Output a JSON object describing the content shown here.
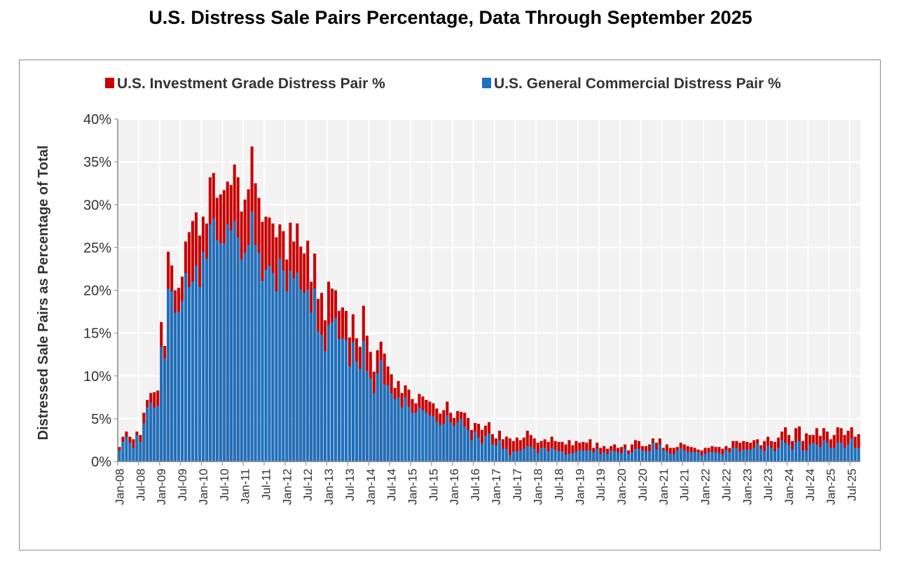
{
  "chart_data": {
    "type": "bar",
    "title": "U.S. Distress Sale Pairs Percentage, Data Through September 2025",
    "ylabel": "Distressed Sale Pairs as Percentage of Total",
    "xlabel": "",
    "x_range": [
      "Jan-08",
      "Sep-25"
    ],
    "x_frequency": "monthly",
    "ylim": [
      0,
      40
    ],
    "y_ticks": [
      "0%",
      "5%",
      "10%",
      "15%",
      "20%",
      "25%",
      "30%",
      "35%",
      "40%"
    ],
    "y_tick_values": [
      0,
      5,
      10,
      15,
      20,
      25,
      30,
      35,
      40
    ],
    "tick_labels": [
      "Jan-08",
      "Jul-08",
      "Jan-09",
      "Jul-09",
      "Jan-10",
      "Jul-10",
      "Jan-11",
      "Jul-11",
      "Jan-12",
      "Jul-12",
      "Jan-13",
      "Jul-13",
      "Jan-14",
      "Jul-14",
      "Jan-15",
      "Jul-15",
      "Jan-16",
      "Jul-16",
      "Jan-17",
      "Jul-17",
      "Jan-18",
      "Jul-18",
      "Jan-19",
      "Jul-19",
      "Jan-20",
      "Jul-20",
      "Jan-21",
      "Jul-21",
      "Jan-22",
      "Jul-22",
      "Jan-23",
      "Jul-23",
      "Jan-24",
      "Jul-24",
      "Jan-25",
      "Jul-25"
    ],
    "grid": true,
    "legend_position": "top",
    "background_color": "#f2f2f2",
    "series": [
      {
        "name": "U.S. Investment Grade Distress Pair %",
        "color": "#c80000",
        "values": [
          1.7,
          2.9,
          3.5,
          2.9,
          2.6,
          3.5,
          3.1,
          5.7,
          7.2,
          8.0,
          8.1,
          8.3,
          16.3,
          13.5,
          24.5,
          22.9,
          20.0,
          20.3,
          21.6,
          25.7,
          26.8,
          28.1,
          29.1,
          26.4,
          28.6,
          27.8,
          33.2,
          33.7,
          30.8,
          31.2,
          31.7,
          32.7,
          32.3,
          34.7,
          33.2,
          29.2,
          30.6,
          31.8,
          36.8,
          32.5,
          30.8,
          28.0,
          28.6,
          28.5,
          27.8,
          26.2,
          27.7,
          26.9,
          23.6,
          27.9,
          25.7,
          27.8,
          25.1,
          24.3,
          25.8,
          21.0,
          24.3,
          19.0,
          19.7,
          16.5,
          21.0,
          20.2,
          20.0,
          17.6,
          18.0,
          17.6,
          14.5,
          17.2,
          14.4,
          13.4,
          18.2,
          14.7,
          12.8,
          10.5,
          13.0,
          14.0,
          12.6,
          11.1,
          10.2,
          8.6,
          9.4,
          8.0,
          8.9,
          8.4,
          7.3,
          6.8,
          7.9,
          7.6,
          7.2,
          7.0,
          6.8,
          6.2,
          5.6,
          6.0,
          7.0,
          5.7,
          5.1,
          5.9,
          5.8,
          5.7,
          5.1,
          3.7,
          4.5,
          4.4,
          3.7,
          4.2,
          4.6,
          3.2,
          2.7,
          3.6,
          2.6,
          2.9,
          2.7,
          2.4,
          2.8,
          2.5,
          2.8,
          3.6,
          3.1,
          2.7,
          2.2,
          2.4,
          2.6,
          2.3,
          2.9,
          2.4,
          2.3,
          2.3,
          2.0,
          2.5,
          1.9,
          2.4,
          2.2,
          2.3,
          2.2,
          2.6,
          1.6,
          2.2,
          1.6,
          1.8,
          1.5,
          1.8,
          2.0,
          1.6,
          1.7,
          2.0,
          1.3,
          2.0,
          2.5,
          2.4,
          1.8,
          1.8,
          2.0,
          2.7,
          2.2,
          2.7,
          1.6,
          2.0,
          1.6,
          1.6,
          1.7,
          2.2,
          2.0,
          1.8,
          1.7,
          1.6,
          1.4,
          1.3,
          1.6,
          1.6,
          1.8,
          1.7,
          1.7,
          1.5,
          1.8,
          1.6,
          2.4,
          2.4,
          2.2,
          2.4,
          2.3,
          2.2,
          2.5,
          2.6,
          1.9,
          2.4,
          2.9,
          2.4,
          2.3,
          2.8,
          3.5,
          4.0,
          3.1,
          2.4,
          3.9,
          4.1,
          2.4,
          3.3,
          3.1,
          3.1,
          3.9,
          3.0,
          3.9,
          3.5,
          2.6,
          3.1,
          4.0,
          3.9,
          3.1,
          3.6,
          4.0,
          2.9,
          3.2
        ]
      },
      {
        "name": "U.S. General Commercial Distress Pair %",
        "color": "#1a72bf",
        "values": [
          1.3,
          2.3,
          2.9,
          2.2,
          1.6,
          3.1,
          2.3,
          4.5,
          6.3,
          6.9,
          6.3,
          6.5,
          13.4,
          12.0,
          20.2,
          19.9,
          17.4,
          17.5,
          18.7,
          22.0,
          20.4,
          21.0,
          22.9,
          20.4,
          24.5,
          23.7,
          27.7,
          28.4,
          25.9,
          25.5,
          25.5,
          27.7,
          27.0,
          28.1,
          26.2,
          23.6,
          24.4,
          25.3,
          29.2,
          25.3,
          24.4,
          21.1,
          22.4,
          22.9,
          22.0,
          19.9,
          23.7,
          22.3,
          19.9,
          22.3,
          21.4,
          22.1,
          20.1,
          19.7,
          20.1,
          17.4,
          20.2,
          15.2,
          14.8,
          12.9,
          16.0,
          16.3,
          16.8,
          14.3,
          14.4,
          14.2,
          11.1,
          14.0,
          11.7,
          10.8,
          14.1,
          10.6,
          9.7,
          8.0,
          10.3,
          11.9,
          9.0,
          8.9,
          8.0,
          7.3,
          7.5,
          6.3,
          7.5,
          6.4,
          5.7,
          5.7,
          6.3,
          6.0,
          5.7,
          5.4,
          5.3,
          4.7,
          4.3,
          4.4,
          5.4,
          4.6,
          4.2,
          4.6,
          5.0,
          4.1,
          3.7,
          2.5,
          3.5,
          2.8,
          2.1,
          3.0,
          3.3,
          2.0,
          1.9,
          2.5,
          1.5,
          1.5,
          0.7,
          1.2,
          1.2,
          1.3,
          1.5,
          1.8,
          1.7,
          1.5,
          1.0,
          1.6,
          1.6,
          1.2,
          1.6,
          1.4,
          1.2,
          1.2,
          0.8,
          0.9,
          1.0,
          1.1,
          1.3,
          1.3,
          1.3,
          1.3,
          1.1,
          1.5,
          0.9,
          1.1,
          0.9,
          1.3,
          1.2,
          1.1,
          1.0,
          1.5,
          0.9,
          1.1,
          1.5,
          1.5,
          1.3,
          1.2,
          1.2,
          2.2,
          1.4,
          2.0,
          1.3,
          1.2,
          0.9,
          0.9,
          1.3,
          1.6,
          1.3,
          1.1,
          1.1,
          1.1,
          1.1,
          0.7,
          0.9,
          1.1,
          1.1,
          1.1,
          1.0,
          0.8,
          1.3,
          1.1,
          1.6,
          1.6,
          1.2,
          1.4,
          1.4,
          1.4,
          1.6,
          2.1,
          1.5,
          1.2,
          1.9,
          1.6,
          1.2,
          1.6,
          2.5,
          2.2,
          2.0,
          1.4,
          2.3,
          2.4,
          1.3,
          1.3,
          2.0,
          2.2,
          2.0,
          1.7,
          2.5,
          2.2,
          1.6,
          1.6,
          2.2,
          2.2,
          1.6,
          2.0,
          2.7,
          1.6,
          1.6
        ]
      }
    ]
  }
}
